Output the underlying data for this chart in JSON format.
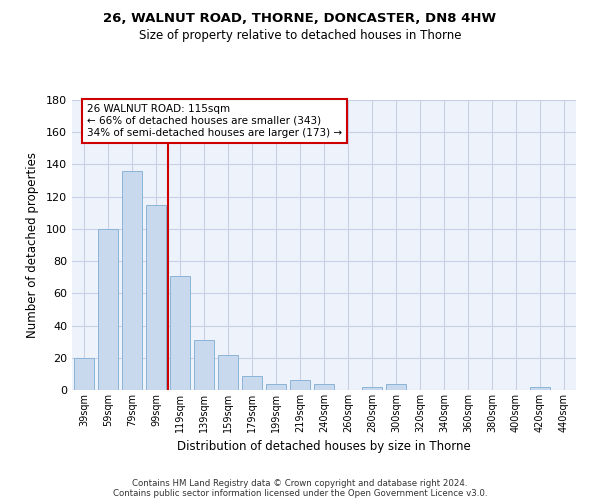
{
  "title1": "26, WALNUT ROAD, THORNE, DONCASTER, DN8 4HW",
  "title2": "Size of property relative to detached houses in Thorne",
  "xlabel": "Distribution of detached houses by size in Thorne",
  "ylabel": "Number of detached properties",
  "bar_labels": [
    "39sqm",
    "59sqm",
    "79sqm",
    "99sqm",
    "119sqm",
    "139sqm",
    "159sqm",
    "179sqm",
    "199sqm",
    "219sqm",
    "240sqm",
    "260sqm",
    "280sqm",
    "300sqm",
    "320sqm",
    "340sqm",
    "360sqm",
    "380sqm",
    "400sqm",
    "420sqm",
    "440sqm"
  ],
  "bar_values": [
    20,
    100,
    136,
    115,
    71,
    31,
    22,
    9,
    4,
    6,
    4,
    0,
    2,
    4,
    0,
    0,
    0,
    0,
    0,
    2,
    0
  ],
  "bar_color": "#c8d9ee",
  "bar_edge_color": "#8ab4d8",
  "vline_color": "#cc0000",
  "ylim": [
    0,
    180
  ],
  "yticks": [
    0,
    20,
    40,
    60,
    80,
    100,
    120,
    140,
    160,
    180
  ],
  "annotation_title": "26 WALNUT ROAD: 115sqm",
  "annotation_line1": "← 66% of detached houses are smaller (343)",
  "annotation_line2": "34% of semi-detached houses are larger (173) →",
  "annotation_box_color": "#ffffff",
  "annotation_box_edge": "#cc0000",
  "bg_color": "#eef2fa",
  "grid_color": "#c8d0e8",
  "footer1": "Contains HM Land Registry data © Crown copyright and database right 2024.",
  "footer2": "Contains public sector information licensed under the Open Government Licence v3.0."
}
